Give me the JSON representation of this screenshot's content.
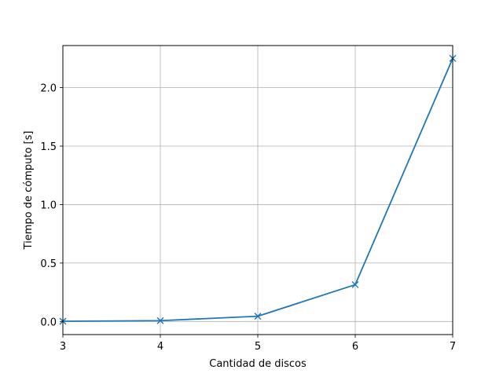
{
  "chart_data": {
    "type": "line",
    "title": "",
    "xlabel": "Cantidad de discos",
    "ylabel": "Tiempo de cómputo [s]",
    "xlim": [
      3,
      7
    ],
    "ylim": [
      -0.112,
      2.36
    ],
    "xticks": [
      3,
      4,
      5,
      6,
      7
    ],
    "xtick_labels": [
      "3",
      "4",
      "5",
      "6",
      "7"
    ],
    "yticks": [
      0.0,
      0.5,
      1.0,
      1.5,
      2.0
    ],
    "ytick_labels": [
      "0.0",
      "0.5",
      "1.0",
      "1.5",
      "2.0"
    ],
    "grid": true,
    "legend": "none",
    "marker": "x",
    "color": "#1f77b4",
    "series": [
      {
        "x": [
          3,
          4,
          5,
          6,
          7
        ],
        "y": [
          0.002,
          0.007,
          0.045,
          0.315,
          2.25
        ]
      }
    ]
  }
}
